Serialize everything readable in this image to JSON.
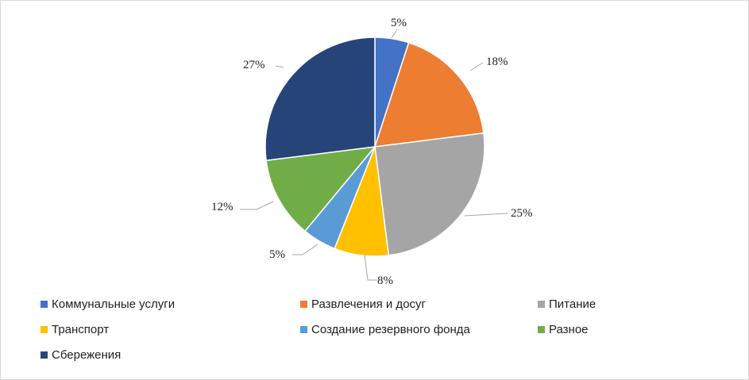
{
  "chart_data": {
    "type": "pie",
    "title": "",
    "series": [
      {
        "label": "Коммунальные услуги",
        "value": 5,
        "color": "#4472C4"
      },
      {
        "label": "Развлечения и досуг",
        "value": 18,
        "color": "#ED7D31"
      },
      {
        "label": "Питание",
        "value": 25,
        "color": "#A5A5A5"
      },
      {
        "label": "Транспорт",
        "value": 8,
        "color": "#FFC000"
      },
      {
        "label": "Создание резервного фонда",
        "value": 5,
        "color": "#5B9BD5"
      },
      {
        "label": "Разное",
        "value": 12,
        "color": "#70AD47"
      },
      {
        "label": "Сбережения",
        "value": 27,
        "color": "#264478"
      }
    ],
    "data_labels": [
      "5%",
      "18%",
      "25%",
      "8%",
      "5%",
      "12%",
      "27%"
    ],
    "start_angle_deg": 0,
    "direction": "clockwise",
    "legend_position": "bottom"
  }
}
